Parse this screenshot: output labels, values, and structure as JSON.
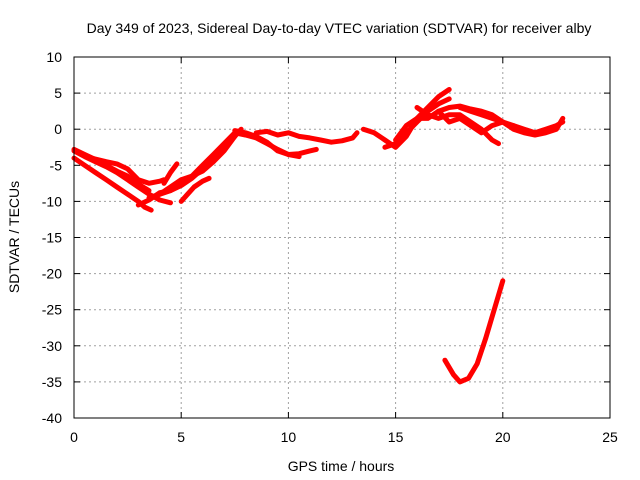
{
  "chart_data": {
    "type": "line",
    "title": "Day 349 of 2023, Sidereal Day-to-day VTEC variation (SDTVAR) for receiver alby",
    "xlabel": "GPS time / hours",
    "ylabel": "SDTVAR / TECUs",
    "xlim": [
      0,
      25
    ],
    "ylim": [
      -40,
      10
    ],
    "x_ticks": [
      0,
      5,
      10,
      15,
      20,
      25
    ],
    "y_ticks": [
      10,
      5,
      0,
      -5,
      -10,
      -15,
      -20,
      -25,
      -30,
      -35,
      -40
    ],
    "grid": true,
    "series_color": "#ff0000",
    "series": [
      {
        "name": "arc-1",
        "x": [
          0.0,
          0.5,
          1.0,
          1.5,
          2.0,
          2.5,
          3.0,
          3.5,
          4.0,
          4.5
        ],
        "y": [
          -3.0,
          -3.8,
          -4.5,
          -5.2,
          -6.0,
          -7.0,
          -8.0,
          -9.0,
          -9.8,
          -10.2
        ]
      },
      {
        "name": "arc-2",
        "x": [
          0.0,
          0.5,
          1.0,
          1.5,
          2.0,
          2.5,
          3.0,
          3.3,
          3.6
        ],
        "y": [
          -4.0,
          -5.0,
          -6.0,
          -7.0,
          -8.0,
          -9.0,
          -10.0,
          -10.8,
          -11.2
        ]
      },
      {
        "name": "arc-3",
        "x": [
          0.2,
          0.8,
          1.5,
          2.0,
          2.5,
          3.0,
          3.5,
          4.0,
          4.2
        ],
        "y": [
          -3.2,
          -4.0,
          -4.5,
          -4.8,
          -5.5,
          -7.0,
          -7.5,
          -7.2,
          -7.0
        ]
      },
      {
        "name": "arc-4",
        "x": [
          0.0,
          0.5,
          1.0,
          1.5,
          2.0,
          2.5,
          3.0,
          3.5
        ],
        "y": [
          -2.8,
          -3.5,
          -4.2,
          -5.0,
          -5.8,
          -6.5,
          -7.6,
          -8.5
        ]
      },
      {
        "name": "arc-5",
        "x": [
          3.0,
          3.5,
          4.0,
          4.5,
          5.0,
          5.5,
          6.0,
          6.5,
          7.0,
          7.5
        ],
        "y": [
          -10.5,
          -9.8,
          -8.8,
          -8.5,
          -7.5,
          -6.5,
          -5.0,
          -3.5,
          -2.0,
          -0.5
        ]
      },
      {
        "name": "arc-6",
        "x": [
          3.5,
          4.0,
          4.5,
          5.0,
          5.5,
          6.0,
          6.5,
          7.0,
          7.5
        ],
        "y": [
          -9.5,
          -9.0,
          -8.5,
          -7.8,
          -6.8,
          -5.5,
          -4.0,
          -2.5,
          -1.0
        ]
      },
      {
        "name": "arc-7",
        "x": [
          4.0,
          4.5,
          5.0,
          5.5,
          6.0,
          6.5,
          7.0,
          7.5,
          7.8
        ],
        "y": [
          -9.0,
          -8.0,
          -7.0,
          -6.5,
          -5.8,
          -4.5,
          -3.0,
          -1.0,
          0.0
        ]
      },
      {
        "name": "arc-8",
        "x": [
          4.2,
          4.5,
          4.8
        ],
        "y": [
          -7.5,
          -6.0,
          -4.8
        ]
      },
      {
        "name": "arc-9",
        "x": [
          5.0,
          5.3,
          5.6,
          6.0,
          6.3
        ],
        "y": [
          -10.0,
          -9.0,
          -8.0,
          -7.2,
          -6.8
        ]
      },
      {
        "name": "arc-10",
        "x": [
          7.5,
          8.0,
          8.5,
          9.0,
          9.5,
          10.0,
          10.5,
          11.0,
          11.3
        ],
        "y": [
          -0.5,
          -0.8,
          -1.2,
          -2.0,
          -2.8,
          -3.5,
          -3.4,
          -3.0,
          -2.8
        ]
      },
      {
        "name": "arc-11",
        "x": [
          7.5,
          8.0,
          8.5,
          9.0,
          9.5,
          10.0,
          10.5
        ],
        "y": [
          -0.2,
          -0.5,
          -1.0,
          -1.8,
          -3.0,
          -3.5,
          -3.8
        ]
      },
      {
        "name": "arc-12",
        "x": [
          8.5,
          9.0,
          9.5,
          10.0,
          10.5,
          11.0,
          11.5,
          12.0,
          12.5,
          13.0,
          13.2
        ],
        "y": [
          -0.5,
          -0.3,
          -0.8,
          -0.5,
          -1.0,
          -1.2,
          -1.5,
          -1.8,
          -1.6,
          -1.2,
          -0.5
        ]
      },
      {
        "name": "arc-13",
        "x": [
          13.5,
          14.0,
          14.5,
          15.0,
          15.5,
          16.0,
          16.5,
          17.0,
          17.5
        ],
        "y": [
          0.0,
          -0.5,
          -1.5,
          -2.5,
          -1.0,
          1.5,
          3.0,
          4.5,
          5.5
        ]
      },
      {
        "name": "arc-14",
        "x": [
          14.5,
          15.0,
          15.5,
          16.0,
          16.5,
          17.0,
          17.5
        ],
        "y": [
          -2.5,
          -2.0,
          -0.5,
          1.0,
          2.5,
          3.5,
          4.2
        ]
      },
      {
        "name": "arc-15",
        "x": [
          15.0,
          15.5,
          16.0,
          16.5,
          17.0,
          17.5,
          18.0,
          18.5,
          19.0,
          19.5,
          20.0,
          20.5
        ],
        "y": [
          -1.5,
          0.5,
          1.5,
          1.5,
          2.5,
          3.0,
          3.2,
          2.8,
          2.5,
          2.0,
          1.0,
          0.5
        ]
      },
      {
        "name": "arc-16",
        "x": [
          16.0,
          16.5,
          17.0,
          17.5,
          18.0,
          18.5,
          19.0,
          19.5,
          19.8
        ],
        "y": [
          3.0,
          2.0,
          1.5,
          2.0,
          2.0,
          1.0,
          0.0,
          -1.5,
          -2.0
        ]
      },
      {
        "name": "arc-17",
        "x": [
          17.0,
          17.5,
          18.0,
          18.5,
          19.0,
          19.5,
          20.0
        ],
        "y": [
          2.5,
          1.0,
          1.5,
          0.5,
          -0.5,
          0.5,
          1.0
        ]
      },
      {
        "name": "arc-18",
        "x": [
          18.0,
          18.5,
          19.0,
          19.5,
          20.0,
          20.5,
          21.0,
          21.5,
          22.0,
          22.5,
          22.8
        ],
        "y": [
          3.0,
          2.5,
          2.0,
          1.5,
          1.0,
          0.0,
          -0.5,
          -0.8,
          -0.5,
          0.0,
          1.5
        ]
      },
      {
        "name": "arc-19",
        "x": [
          20.5,
          21.0,
          21.5,
          22.0,
          22.5,
          22.8
        ],
        "y": [
          0.5,
          0.0,
          -0.5,
          0.0,
          0.5,
          1.0
        ]
      },
      {
        "name": "arc-20",
        "x": [
          17.3,
          17.7,
          18.0,
          18.4,
          18.8,
          19.2,
          19.6,
          20.0
        ],
        "y": [
          -32.0,
          -34.0,
          -35.0,
          -34.5,
          -32.5,
          -29.0,
          -25.0,
          -21.0
        ]
      }
    ]
  }
}
